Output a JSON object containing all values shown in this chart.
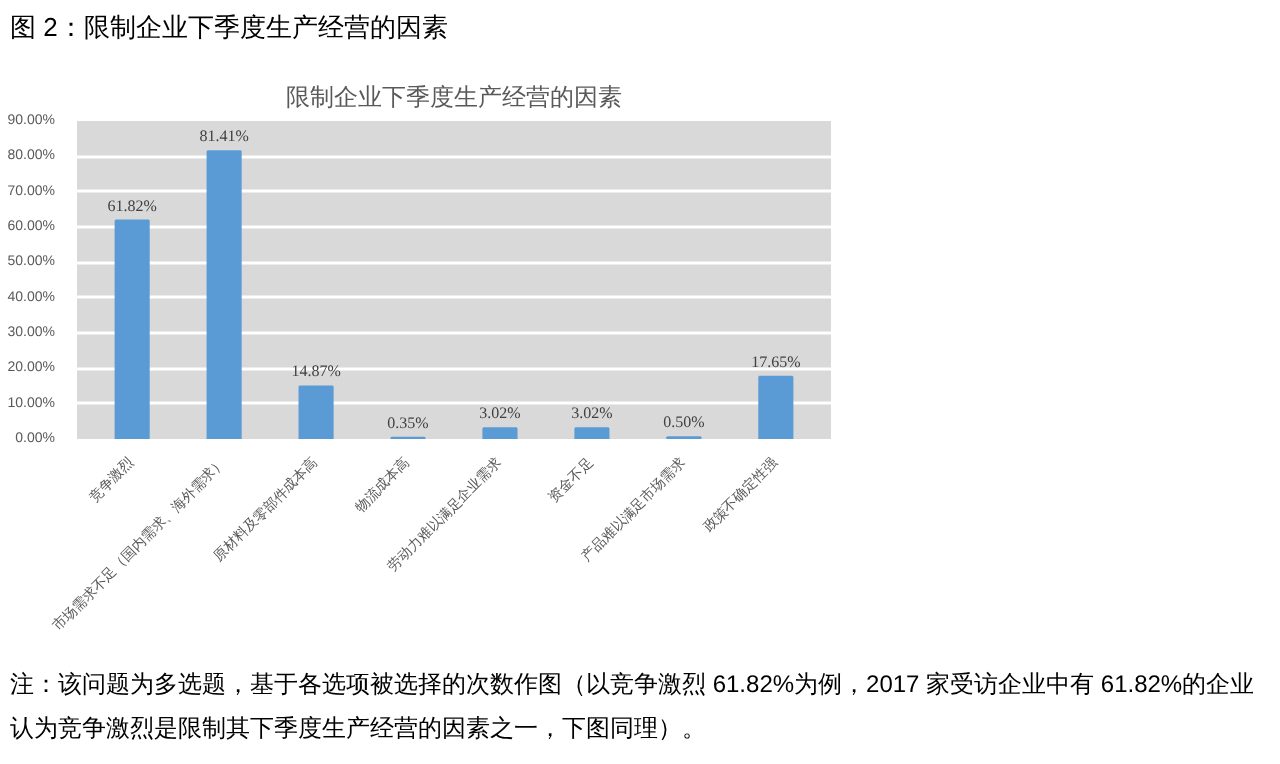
{
  "chart_data": {
    "type": "bar",
    "title": "限制企业下季度生产经营的因素",
    "categories": [
      "竞争激烈",
      "市场需求不足（国内需求、海外需求）",
      "原材料及零部件成本高",
      "物流成本高",
      "劳动力难以满足企业需求",
      "资金不足",
      "产品难以满足市场需求",
      "政策不确定性强"
    ],
    "values": [
      61.82,
      81.41,
      14.87,
      0.35,
      3.02,
      3.02,
      0.5,
      17.65
    ],
    "value_labels": [
      "61.82%",
      "81.41%",
      "14.87%",
      "0.35%",
      "3.02%",
      "3.02%",
      "0.50%",
      "17.65%"
    ],
    "color": "#5b9bd5",
    "ylim": [
      0,
      90
    ],
    "yticks": [
      {
        "value": 0,
        "label": "0.00%"
      },
      {
        "value": 10,
        "label": "10.00%"
      },
      {
        "value": 20,
        "label": "20.00%"
      },
      {
        "value": 30,
        "label": "30.00%"
      },
      {
        "value": 40,
        "label": "40.00%"
      },
      {
        "value": 50,
        "label": "50.00%"
      },
      {
        "value": 60,
        "label": "60.00%"
      },
      {
        "value": 70,
        "label": "70.00%"
      },
      {
        "value": 80,
        "label": "80.00%"
      },
      {
        "value": 90,
        "label": "90.00%"
      }
    ],
    "grid": "y",
    "annotations": [
      "图 2：限制企业下季度生产经营的因素",
      "注：该问题为多选题，基于各选项被选择的次数作图（以竞争激烈 61.82%为例，2017 家受访企业中有 61.82%的企业认为竞争激烈是限制其下季度生产经营的因素之一，下图同理）。"
    ]
  }
}
